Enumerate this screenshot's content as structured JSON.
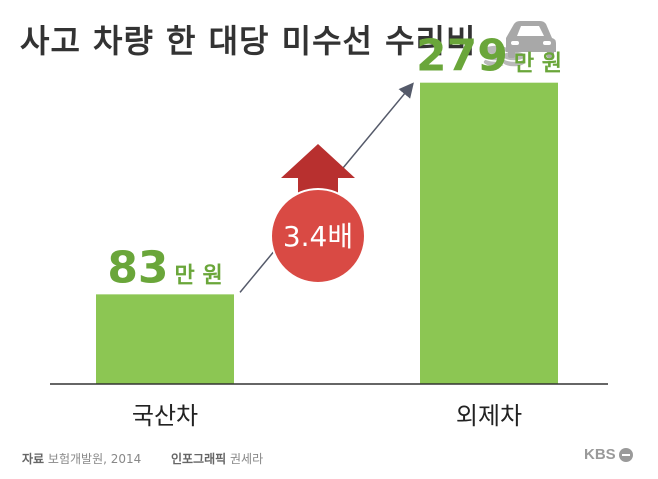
{
  "title": "사고 차량 한 대당 미수선 수리비",
  "chart_data": {
    "type": "bar",
    "categories": [
      "국산차",
      "외제차"
    ],
    "values": [
      83,
      279
    ],
    "value_labels": [
      "83",
      "279"
    ],
    "unit": "만 원",
    "ylim": [
      0,
      300
    ],
    "ratio_label": "3.4배",
    "grid": false
  },
  "footer": {
    "source_label": "자료",
    "source_text": "보험개발원, 2014",
    "graphic_label": "인포그래픽",
    "graphic_text": "권세라"
  },
  "brand": "KBS",
  "colors": {
    "bar": "#8cc653",
    "value_text": "#6aa63a",
    "circle": "#d94a44",
    "arrow_up": "#b8302f",
    "axis": "#333333",
    "title": "#333333"
  },
  "icons": [
    "car-icon",
    "coins-icon"
  ]
}
